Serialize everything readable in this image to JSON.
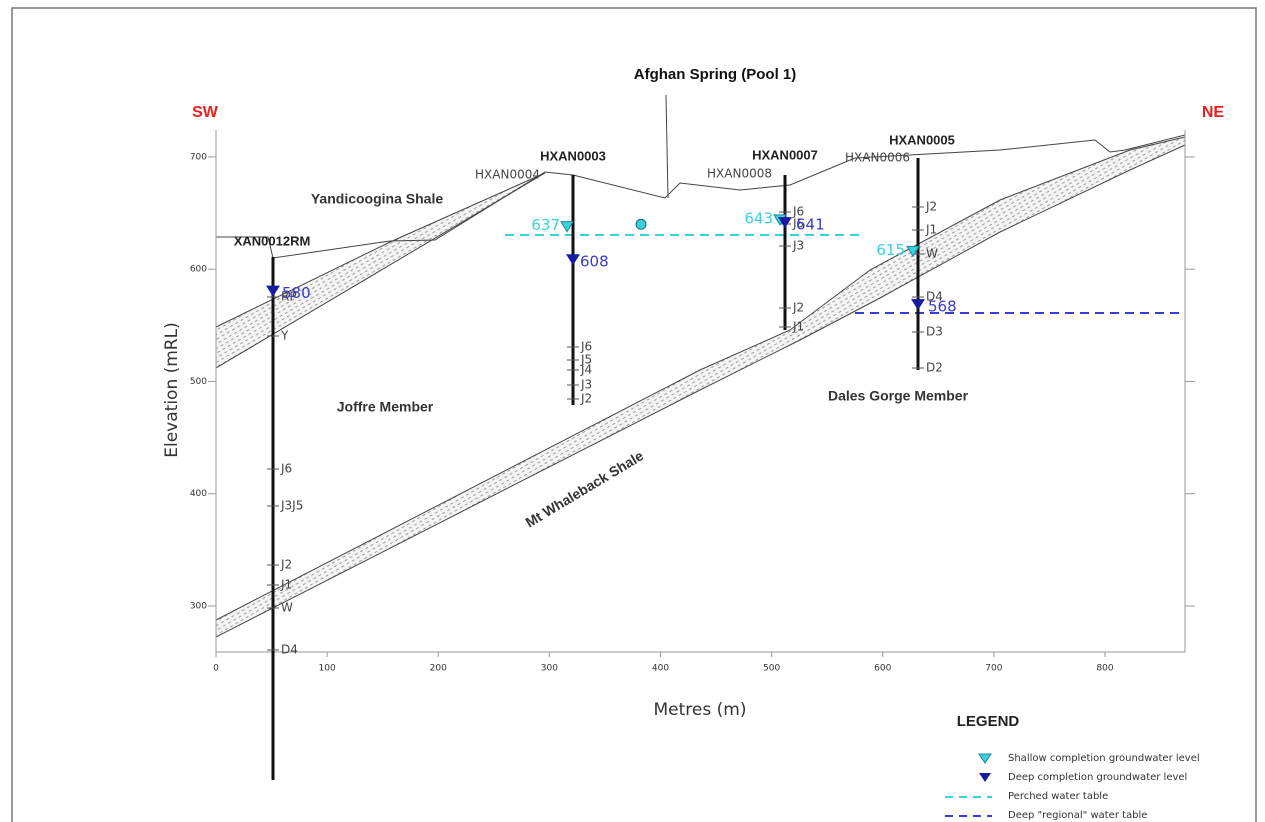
{
  "direction_labels": {
    "left": "SW",
    "right": "NE"
  },
  "spring": {
    "label": "Afghan Spring (Pool 1)",
    "level": 640
  },
  "axes": {
    "x": {
      "label": "Metres (m)",
      "lim": [
        0,
        872
      ],
      "ticks": [
        0,
        100,
        200,
        300,
        400,
        500,
        600,
        700,
        800
      ]
    },
    "y": {
      "label": "Elevation (mRL)",
      "lim": [
        259,
        724
      ],
      "ticks": [
        300,
        400,
        500,
        600,
        700
      ]
    }
  },
  "formations": [
    "Yandicoogina Shale",
    "Joffre Member",
    "Mt Whaleback Shale",
    "Dales Gorge Member"
  ],
  "boreholes": [
    {
      "name": "XAN0012RM",
      "units": [
        "RP",
        "Y",
        "J6",
        "J3J5",
        "J2",
        "J1",
        "W",
        "D4"
      ],
      "deep_level": 580
    },
    {
      "name": "HXAN0003",
      "units": [
        "J6",
        "J5",
        "J4",
        "J3",
        "J2"
      ],
      "deep_level": 608,
      "shallow_name": "HXAN0004",
      "shallow_level": 637
    },
    {
      "name": "HXAN0007",
      "units": [
        "J6",
        "J5",
        "J3",
        "J2",
        "J1"
      ],
      "deep_level": 641,
      "shallow_name": "HXAN0008",
      "shallow_level": 643
    },
    {
      "name": "HXAN0005",
      "units": [
        "J2",
        "J1",
        "W",
        "D4",
        "D3",
        "D2"
      ],
      "deep_level": 568,
      "shallow_name": "HXAN0006",
      "shallow_level": 615
    }
  ],
  "legend": {
    "title": "LEGEND",
    "items": [
      "Shallow completion groundwater level",
      "Deep completion groundwater level",
      "Perched water table",
      "Deep \"regional\" water table"
    ]
  }
}
